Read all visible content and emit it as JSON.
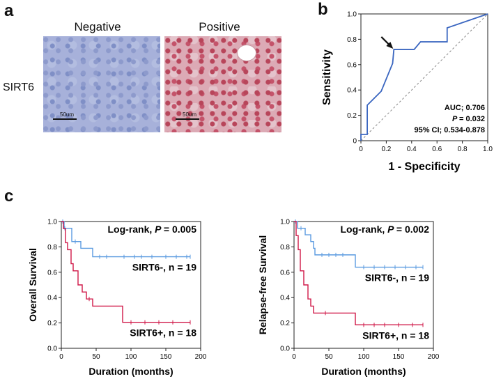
{
  "panel_a": {
    "letter": "a",
    "col_negative": "Negative",
    "col_positive": "Positive",
    "row_label": "SIRT6",
    "scalebar_text": "50um"
  },
  "panel_b": {
    "letter": "b"
  },
  "panel_c": {
    "letter": "c"
  },
  "colors": {
    "roc": "#3a66c0",
    "neg": "#5b9be0",
    "pos": "#d01848"
  },
  "chart_data": [
    {
      "type": "line",
      "name": "roc",
      "title": "",
      "xlabel": "1 - Specificity",
      "ylabel": "Sensitivity",
      "xlim": [
        0,
        1
      ],
      "ylim": [
        0,
        1
      ],
      "xticks": [
        "0",
        "0.2",
        "0.4",
        "0.6",
        "0.8",
        "1.0"
      ],
      "yticks": [
        "0",
        "0.2",
        "0.4",
        "0.6",
        "0.8",
        "1.0"
      ],
      "series": [
        {
          "name": "ROC",
          "x": [
            0,
            0,
            0.05,
            0.05,
            0.16,
            0.25,
            0.26,
            0.42,
            0.47,
            0.68,
            0.68,
            1.0
          ],
          "y": [
            0,
            0.05,
            0.05,
            0.28,
            0.39,
            0.61,
            0.72,
            0.72,
            0.78,
            0.78,
            0.89,
            1.0
          ]
        }
      ],
      "reference_line": "diagonal",
      "arrow_at": [
        0.26,
        0.72
      ],
      "annotations": {
        "auc": "AUC; 0.706",
        "p": "= 0.032",
        "p_italic": "P",
        "ci": "95% CI; 0.534-0.878"
      }
    },
    {
      "type": "line",
      "name": "overall_survival",
      "xlabel": "Duration (months)",
      "ylabel": "Overall Survival",
      "xlim": [
        0,
        200
      ],
      "ylim": [
        0,
        1
      ],
      "xticks": [
        "0",
        "50",
        "100",
        "150",
        "200"
      ],
      "yticks": [
        "0.0",
        "0.2",
        "0.4",
        "0.6",
        "0.8",
        "1.0"
      ],
      "logrank_prefix": "Log-rank,",
      "logrank_p_italic": "P",
      "logrank_value": "= 0.005",
      "series": [
        {
          "name": "SIRT6-",
          "label": "SIRT6-, n = 19",
          "x": [
            0,
            4,
            4,
            15,
            15,
            28,
            28,
            45,
            45,
            185
          ],
          "y": [
            1,
            1,
            0.947,
            0.947,
            0.842,
            0.842,
            0.789,
            0.789,
            0.722,
            0.722
          ],
          "censor_x": [
            2,
            5,
            20,
            55,
            65,
            90,
            105,
            115,
            130,
            150,
            165,
            180,
            185
          ]
        },
        {
          "name": "SIRT6+",
          "label": "SIRT6+, n = 18",
          "x": [
            0,
            3,
            3,
            6,
            6,
            9,
            9,
            14,
            14,
            17,
            17,
            24,
            24,
            30,
            30,
            36,
            36,
            45,
            45,
            88,
            88,
            185
          ],
          "y": [
            1,
            1,
            0.944,
            0.944,
            0.833,
            0.833,
            0.778,
            0.778,
            0.667,
            0.667,
            0.611,
            0.611,
            0.5,
            0.5,
            0.444,
            0.444,
            0.389,
            0.389,
            0.333,
            0.333,
            0.205,
            0.205
          ],
          "censor_x": [
            40,
            100,
            120,
            140,
            160,
            185
          ]
        }
      ]
    },
    {
      "type": "line",
      "name": "relapse_free_survival",
      "xlabel": "Duration (months)",
      "ylabel": "Relapse-free Survival",
      "xlim": [
        0,
        200
      ],
      "ylim": [
        0,
        1
      ],
      "xticks": [
        "0",
        "50",
        "100",
        "150",
        "200"
      ],
      "yticks": [
        "0.0",
        "0.2",
        "0.4",
        "0.6",
        "0.8",
        "1.0"
      ],
      "logrank_prefix": "Log-rank,",
      "logrank_p_italic": "P",
      "logrank_value": "= 0.002",
      "series": [
        {
          "name": "SIRT6-",
          "label": "SIRT6-, n = 19",
          "x": [
            0,
            5,
            5,
            16,
            16,
            24,
            24,
            28,
            28,
            30,
            30,
            88,
            88,
            185
          ],
          "y": [
            1,
            1,
            0.947,
            0.947,
            0.895,
            0.895,
            0.842,
            0.842,
            0.789,
            0.789,
            0.737,
            0.737,
            0.64,
            0.64
          ],
          "censor_x": [
            2,
            10,
            40,
            50,
            60,
            70,
            100,
            115,
            130,
            145,
            160,
            175,
            185
          ]
        },
        {
          "name": "SIRT6+",
          "label": "SIRT6+, n = 18",
          "x": [
            0,
            3,
            3,
            6,
            6,
            9,
            9,
            14,
            14,
            20,
            20,
            24,
            24,
            28,
            28,
            88,
            88,
            185
          ],
          "y": [
            1,
            1,
            0.889,
            0.889,
            0.778,
            0.778,
            0.611,
            0.611,
            0.5,
            0.5,
            0.389,
            0.389,
            0.333,
            0.333,
            0.278,
            0.278,
            0.185,
            0.185
          ],
          "censor_x": [
            45,
            100,
            115,
            130,
            150,
            170,
            185
          ]
        }
      ]
    }
  ]
}
